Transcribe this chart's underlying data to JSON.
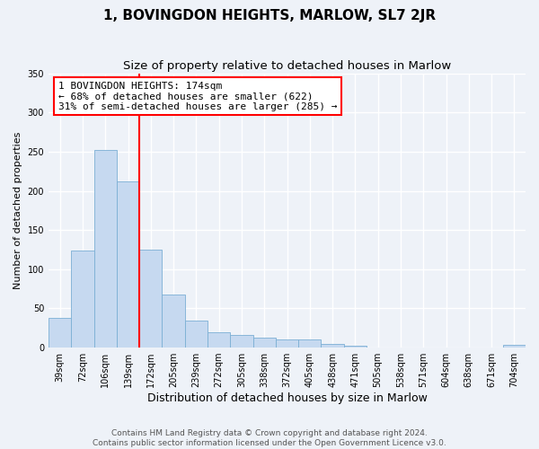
{
  "title": "1, BOVINGDON HEIGHTS, MARLOW, SL7 2JR",
  "subtitle": "Size of property relative to detached houses in Marlow",
  "xlabel": "Distribution of detached houses by size in Marlow",
  "ylabel": "Number of detached properties",
  "bar_labels": [
    "39sqm",
    "72sqm",
    "106sqm",
    "139sqm",
    "172sqm",
    "205sqm",
    "239sqm",
    "272sqm",
    "305sqm",
    "338sqm",
    "372sqm",
    "405sqm",
    "438sqm",
    "471sqm",
    "505sqm",
    "538sqm",
    "571sqm",
    "604sqm",
    "638sqm",
    "671sqm",
    "704sqm"
  ],
  "bar_values": [
    38,
    124,
    252,
    212,
    125,
    68,
    35,
    20,
    16,
    13,
    10,
    10,
    5,
    2,
    0,
    0,
    0,
    0,
    0,
    0,
    3
  ],
  "bar_color": "#c6d9f0",
  "bar_edge_color": "#7bafd4",
  "vline_color": "red",
  "vline_x_index": 3.5,
  "annotation_title": "1 BOVINGDON HEIGHTS: 174sqm",
  "annotation_line1": "← 68% of detached houses are smaller (622)",
  "annotation_line2": "31% of semi-detached houses are larger (285) →",
  "annotation_box_color": "white",
  "annotation_box_edge": "red",
  "ylim": [
    0,
    350
  ],
  "yticks": [
    0,
    50,
    100,
    150,
    200,
    250,
    300,
    350
  ],
  "footer_line1": "Contains HM Land Registry data © Crown copyright and database right 2024.",
  "footer_line2": "Contains public sector information licensed under the Open Government Licence v3.0.",
  "background_color": "#eef2f8",
  "grid_color": "#ffffff",
  "title_fontsize": 11,
  "subtitle_fontsize": 9.5,
  "xlabel_fontsize": 9,
  "ylabel_fontsize": 8,
  "tick_fontsize": 7,
  "footer_fontsize": 6.5,
  "annotation_fontsize": 8
}
